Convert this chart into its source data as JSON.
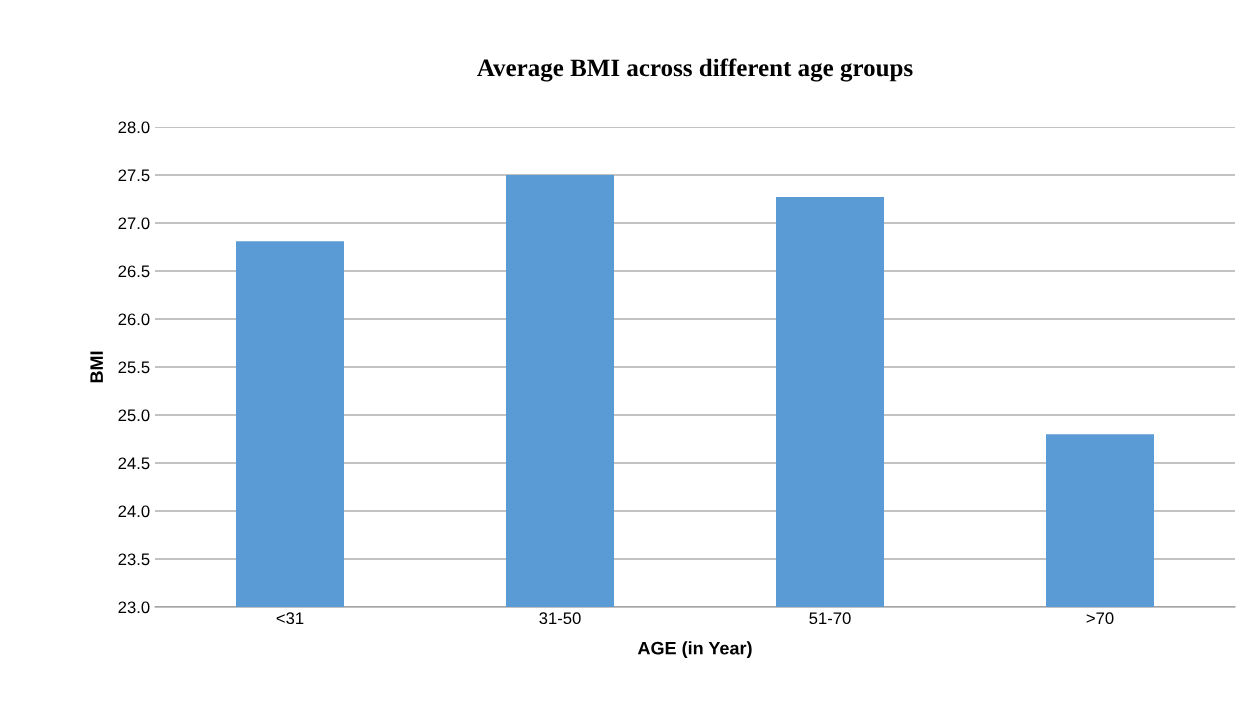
{
  "chart_data": {
    "type": "bar",
    "title": "Average BMI across different age groups",
    "xlabel": "AGE (in Year)",
    "ylabel": "BMI",
    "categories": [
      "<31",
      "31-50",
      "51-70",
      ">70"
    ],
    "values": [
      26.81,
      27.5,
      27.27,
      24.8
    ],
    "color": "#5b9bd5",
    "ylim": [
      23.0,
      28.0
    ],
    "yticks": [
      {
        "value": 23.0,
        "label": "23.0"
      },
      {
        "value": 23.5,
        "label": "23.5"
      },
      {
        "value": 24.0,
        "label": "24.0"
      },
      {
        "value": 24.5,
        "label": "24.5"
      },
      {
        "value": 25.0,
        "label": "25.0"
      },
      {
        "value": 25.5,
        "label": "25.5"
      },
      {
        "value": 26.0,
        "label": "26.0"
      },
      {
        "value": 26.5,
        "label": "26.5"
      },
      {
        "value": 27.0,
        "label": "27.0"
      },
      {
        "value": 27.5,
        "label": "27.5"
      },
      {
        "value": 28.0,
        "label": "28.0"
      }
    ],
    "grid": "y",
    "legend": false
  }
}
